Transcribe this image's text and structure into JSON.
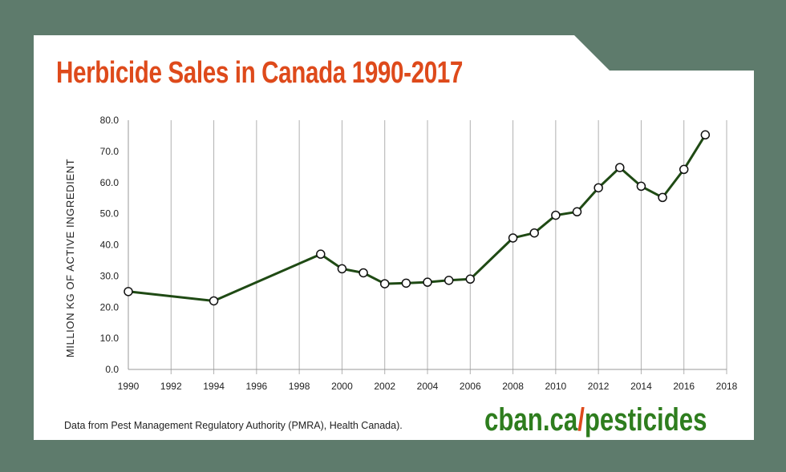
{
  "title": "Herbicide Sales in Canada 1990-2017",
  "source_note": "Data from Pest Management Regulatory Authority (PMRA), Health Canada).",
  "brand": {
    "part1": "cban.ca",
    "part2": "/",
    "part3": "pesticides"
  },
  "colors": {
    "frame": "#5e7b6c",
    "panel": "#ffffff",
    "title": "#de4a1b",
    "brand_green": "#2e7d1e",
    "brand_slash": "#de4a1b",
    "line": "#1f4a14",
    "grid": "#b0b0b0"
  },
  "chart_data": {
    "type": "line",
    "title": "Herbicide Sales in Canada 1990-2017",
    "xlabel": "",
    "ylabel": "MILLION KG OF ACTIVE INGREDIENT",
    "xlim": [
      1990,
      2018
    ],
    "ylim": [
      0,
      80
    ],
    "xticks": [
      "1990",
      "1992",
      "1994",
      "1996",
      "1998",
      "2000",
      "2002",
      "2004",
      "2006",
      "2008",
      "2010",
      "2012",
      "2014",
      "2016",
      "2018"
    ],
    "yticks": [
      "0.0",
      "10.0",
      "20.0",
      "30.0",
      "40.0",
      "50.0",
      "60.0",
      "70.0",
      "80.0"
    ],
    "grid": "vertical",
    "x": [
      1990,
      1994,
      1999,
      2000,
      2001,
      2002,
      2003,
      2004,
      2005,
      2006,
      2008,
      2009,
      2010,
      2011,
      2012,
      2013,
      2014,
      2015,
      2016,
      2017
    ],
    "y": [
      25.0,
      22.0,
      37.0,
      32.3,
      31.0,
      27.5,
      27.7,
      28.0,
      28.6,
      29.0,
      42.2,
      43.8,
      49.5,
      50.6,
      58.3,
      64.8,
      58.8,
      55.2,
      64.2,
      75.3
    ]
  }
}
